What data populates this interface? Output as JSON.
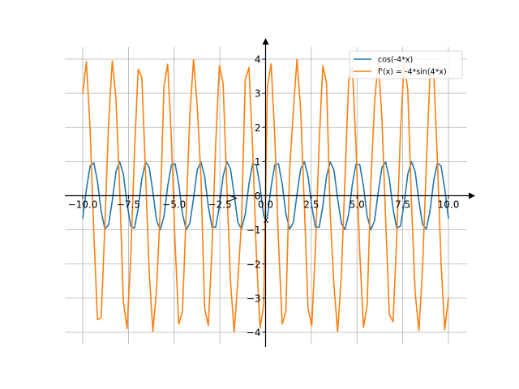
{
  "chart_data": {
    "type": "line",
    "title": "",
    "xlabel": "x",
    "ylabel": "",
    "xlim": [
      -10.0,
      10.0
    ],
    "ylim": [
      -4.0,
      4.0
    ],
    "grid": true,
    "legend_position": "top-right",
    "x_ticks": [
      -10.0,
      -7.5,
      -5.0,
      -2.5,
      0.0,
      2.5,
      5.0,
      7.5,
      10.0
    ],
    "x_tick_labels": [
      "−10.0",
      "−7.5",
      "−5.0",
      "−2.5",
      "0.0",
      "2.5",
      "5.0",
      "7.5",
      "10.0"
    ],
    "y_ticks": [
      -4,
      -3,
      -2,
      -1,
      0,
      1,
      2,
      3,
      4
    ],
    "y_tick_labels": [
      "−4",
      "−3",
      "−2",
      "−1",
      "0",
      "1",
      "2",
      "3",
      "4"
    ],
    "x": [
      -10.0,
      -9.798,
      -9.596,
      -9.394,
      -9.192,
      -8.99,
      -8.788,
      -8.586,
      -8.384,
      -8.182,
      -7.98,
      -7.778,
      -7.576,
      -7.374,
      -7.172,
      -6.97,
      -6.768,
      -6.566,
      -6.364,
      -6.162,
      -5.96,
      -5.758,
      -5.556,
      -5.354,
      -5.152,
      -4.949,
      -4.747,
      -4.545,
      -4.343,
      -4.141,
      -3.939,
      -3.737,
      -3.535,
      -3.333,
      -3.131,
      -2.929,
      -2.727,
      -2.525,
      -2.323,
      -2.121,
      -1.919,
      -1.717,
      -1.515,
      -1.313,
      -1.111,
      -0.909,
      -0.707,
      -0.505,
      -0.303,
      -0.101,
      0.101,
      0.303,
      0.505,
      0.707,
      0.909,
      1.111,
      1.313,
      1.515,
      1.717,
      1.919,
      2.121,
      2.323,
      2.525,
      2.727,
      2.929,
      3.131,
      3.333,
      3.535,
      3.737,
      3.939,
      4.141,
      4.343,
      4.545,
      4.747,
      4.949,
      5.152,
      5.354,
      5.556,
      5.758,
      5.96,
      6.162,
      6.364,
      6.566,
      6.768,
      6.97,
      7.172,
      7.374,
      7.576,
      7.778,
      7.98,
      8.182,
      8.384,
      8.586,
      8.788,
      8.99,
      9.192,
      9.394,
      9.596,
      9.798,
      10.0
    ],
    "series": [
      {
        "name": "cos(-4*x)",
        "color": "#1f77b4",
        "values": [
          -0.667,
          0.194,
          0.87,
          0.963,
          0.42,
          -0.458,
          -0.976,
          -0.85,
          -0.154,
          0.7,
          0.998,
          0.634,
          -0.233,
          -0.889,
          -0.951,
          -0.382,
          0.495,
          0.985,
          0.829,
          0.114,
          -0.73,
          -0.995,
          -0.601,
          0.272,
          0.906,
          0.937,
          0.342,
          -0.53,
          -0.992,
          -0.806,
          -0.074,
          0.759,
          0.988,
          0.567,
          -0.31,
          -0.922,
          -0.921,
          -0.303,
          0.565,
          0.997,
          0.782,
          0.033,
          -0.787,
          -0.978,
          -0.532,
          0.347,
          0.937,
          0.904,
          0.263,
          -0.598,
          -0.598,
          0.263,
          0.904,
          0.937,
          0.347,
          -0.532,
          -0.978,
          -0.787,
          0.033,
          0.782,
          0.997,
          0.565,
          -0.303,
          -0.921,
          -0.922,
          -0.31,
          0.567,
          0.988,
          0.759,
          -0.074,
          -0.806,
          -0.992,
          -0.53,
          0.342,
          0.937,
          0.906,
          0.272,
          -0.601,
          -0.995,
          -0.73,
          0.114,
          0.829,
          0.985,
          0.495,
          -0.382,
          -0.951,
          -0.889,
          -0.233,
          0.634,
          0.998,
          0.7,
          -0.154,
          -0.85,
          -0.976,
          -0.458,
          0.42,
          0.963,
          0.87,
          0.194,
          -0.667
        ]
      },
      {
        "name": "f'(x) = -4*sin(4*x)",
        "color": "#ff7f0e",
        "values": [
          2.981,
          3.924,
          1.969,
          -1.078,
          -3.63,
          -3.556,
          -0.867,
          2.107,
          3.952,
          2.856,
          0.239,
          -3.093,
          -3.891,
          -1.827,
          1.236,
          3.698,
          3.475,
          0.701,
          -2.237,
          -3.974,
          -2.731,
          -0.395,
          3.201,
          3.853,
          1.681,
          -1.391,
          -3.761,
          -3.39,
          -0.524,
          2.371,
          3.989,
          2.609,
          0.553,
          -3.3,
          -3.805,
          -1.535,
          1.534,
          3.813,
          3.3,
          0.311,
          -2.502,
          -3.997,
          -2.473,
          -0.735,
          3.397,
          3.756,
          1.378,
          -1.702,
          -3.861,
          -3.211,
          3.211,
          3.861,
          1.702,
          -1.378,
          -3.756,
          -3.397,
          0.735,
          2.473,
          3.997,
          2.502,
          -0.311,
          -3.3,
          -3.813,
          -1.534,
          1.535,
          3.805,
          3.3,
          -0.553,
          -2.609,
          -3.989,
          -2.371,
          0.524,
          3.39,
          3.761,
          1.391,
          -1.681,
          -3.853,
          -3.201,
          0.395,
          2.731,
          3.974,
          2.237,
          -0.701,
          -3.475,
          -3.698,
          -1.236,
          1.827,
          3.891,
          3.093,
          -0.239,
          -2.856,
          -3.952,
          -2.107,
          0.867,
          3.556,
          3.63,
          1.078,
          -1.969,
          -3.924,
          -2.981
        ]
      }
    ]
  }
}
